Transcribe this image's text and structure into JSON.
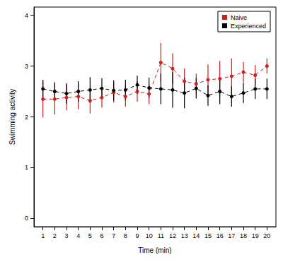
{
  "chart_data": {
    "type": "line",
    "x_label": "Time (min)",
    "y_label": "Swimming activity",
    "x": [
      1,
      2,
      3,
      4,
      5,
      6,
      7,
      8,
      9,
      10,
      11,
      12,
      13,
      14,
      15,
      16,
      17,
      18,
      19,
      20
    ],
    "series": [
      {
        "name": "Naive",
        "color": "#cc2020",
        "marker": "circle",
        "line_style": "dashed",
        "values": [
          2.35,
          2.35,
          2.38,
          2.4,
          2.32,
          2.38,
          2.48,
          2.4,
          2.5,
          2.45,
          3.07,
          2.95,
          2.7,
          2.65,
          2.73,
          2.75,
          2.8,
          2.88,
          2.82,
          3.0
        ],
        "errors": [
          0.36,
          0.3,
          0.25,
          0.25,
          0.25,
          0.2,
          0.2,
          0.2,
          0.2,
          0.2,
          0.38,
          0.3,
          0.25,
          0.2,
          0.3,
          0.35,
          0.35,
          0.2,
          0.2,
          0.15
        ]
      },
      {
        "name": "Experienced",
        "color": "#000000",
        "marker": "circle",
        "line_style": "dashed",
        "values": [
          2.55,
          2.5,
          2.46,
          2.5,
          2.53,
          2.56,
          2.52,
          2.53,
          2.63,
          2.57,
          2.55,
          2.53,
          2.47,
          2.56,
          2.42,
          2.5,
          2.4,
          2.47,
          2.55,
          2.55
        ],
        "errors": [
          0.18,
          0.18,
          0.2,
          0.2,
          0.25,
          0.2,
          0.2,
          0.2,
          0.18,
          0.2,
          0.3,
          0.35,
          0.3,
          0.2,
          0.2,
          0.25,
          0.2,
          0.2,
          0.2,
          0.2
        ]
      }
    ],
    "xlim": [
      0.24,
      20.76
    ],
    "xticks": [
      1,
      2,
      3,
      4,
      5,
      6,
      7,
      8,
      9,
      10,
      11,
      12,
      13,
      14,
      15,
      16,
      17,
      18,
      19,
      20
    ],
    "ylim": [
      -0.16,
      4.16
    ],
    "yticks": [
      0,
      1,
      2,
      3,
      4
    ],
    "grid": false,
    "legend": "top-right"
  }
}
